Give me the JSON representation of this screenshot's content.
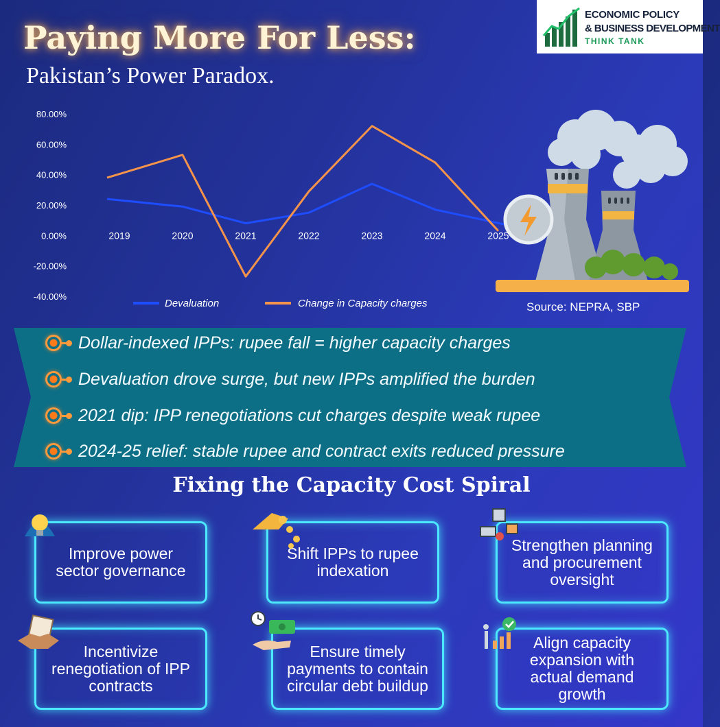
{
  "header": {
    "title": "Paying More For Less:",
    "subtitle": "Pakistan’s Power Paradox."
  },
  "logo": {
    "line1": "ECONOMIC POLICY",
    "line2": "& BUSINESS DEVELOPMENT",
    "line3": "THINK TANK",
    "icon": "rising-bars-logo-icon"
  },
  "chart_data": {
    "type": "line",
    "categories": [
      "2019",
      "2020",
      "2021",
      "2022",
      "2023",
      "2024",
      "2025"
    ],
    "yticks": [
      "80.00%",
      "60.00%",
      "40.00%",
      "20.00%",
      "0.00%",
      "-20.00%",
      "-40.00%"
    ],
    "ylim": [
      -40,
      80
    ],
    "series": [
      {
        "name": "Devaluation",
        "color": "#1e4cff",
        "values": [
          24,
          19,
          8,
          15,
          34,
          17,
          7
        ]
      },
      {
        "name": "Change in Capacity charges",
        "color": "#f5934a",
        "values": [
          38,
          53,
          -27,
          29,
          72,
          48,
          3
        ]
      }
    ],
    "legend_position": "bottom",
    "grid": false
  },
  "source": "Source: NEPRA, SBP",
  "illustration": "power-plant-icon",
  "bullets": [
    "Dollar-indexed IPPs: rupee fall = higher capacity charges",
    "Devaluation drove surge, but new IPPs amplified the burden",
    "2021 dip: IPP renegotiations cut charges despite weak rupee",
    "2024-25 relief: stable rupee and contract exits reduced pressure"
  ],
  "section_title": "Fixing the Capacity Cost Spiral",
  "cards": [
    {
      "text": "Improve power sector governance",
      "icon": "lightbulb-icon"
    },
    {
      "text": "Shift IPPs to rupee indexation",
      "icon": "coins-hand-icon"
    },
    {
      "text": "Strengthen planning and procurement oversight",
      "icon": "logistics-icon"
    },
    {
      "text": "Incentivize renegotiation of IPP contracts",
      "icon": "handshake-icon"
    },
    {
      "text": "Ensure timely payments to contain circular debt buildup",
      "icon": "payment-icon"
    },
    {
      "text": "Align capacity expansion with actual demand growth",
      "icon": "growth-chart-icon"
    }
  ],
  "colors": {
    "accent_orange": "#f5934a",
    "accent_blue": "#1e4cff",
    "banner_teal": "#0d6f86",
    "card_glow": "#4be8ff"
  }
}
